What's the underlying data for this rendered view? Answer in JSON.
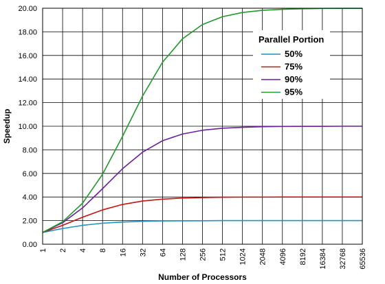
{
  "chart_data": {
    "type": "line",
    "title": "",
    "xlabel": "Number of Processors",
    "ylabel": "Speedup",
    "x": [
      "1",
      "2",
      "4",
      "8",
      "16",
      "32",
      "64",
      "128",
      "256",
      "512",
      "1024",
      "2048",
      "4096",
      "8192",
      "16384",
      "32768",
      "65536"
    ],
    "ylim": [
      0,
      20
    ],
    "yticks": [
      "0.00",
      "2.00",
      "4.00",
      "6.00",
      "8.00",
      "10.00",
      "12.00",
      "14.00",
      "16.00",
      "18.00",
      "20.00"
    ],
    "grid": true,
    "legend_position": "top-right",
    "legend_title": "Parallel Portion",
    "series": [
      {
        "name": "50%",
        "color": "#1f8fc4",
        "values": [
          1.0,
          1.33,
          1.6,
          1.78,
          1.88,
          1.94,
          1.97,
          1.98,
          1.99,
          2.0,
          2.0,
          2.0,
          2.0,
          2.0,
          2.0,
          2.0,
          2.0
        ]
      },
      {
        "name": "75%",
        "color": "#cc1111",
        "values": [
          1.0,
          1.6,
          2.29,
          2.91,
          3.37,
          3.66,
          3.82,
          3.91,
          3.95,
          3.98,
          3.99,
          3.99,
          4.0,
          4.0,
          4.0,
          4.0,
          4.0
        ]
      },
      {
        "name": "90%",
        "color": "#6a1f9e",
        "values": [
          1.0,
          1.82,
          3.08,
          4.71,
          6.4,
          7.8,
          8.77,
          9.34,
          9.66,
          9.83,
          9.91,
          9.96,
          9.98,
          9.99,
          9.99,
          10.0,
          10.0
        ]
      },
      {
        "name": "95%",
        "color": "#1e9a2a",
        "values": [
          1.0,
          1.9,
          3.48,
          5.93,
          9.14,
          12.55,
          15.42,
          17.41,
          18.62,
          19.28,
          19.64,
          19.82,
          19.91,
          19.95,
          19.98,
          19.99,
          19.99
        ]
      }
    ]
  }
}
